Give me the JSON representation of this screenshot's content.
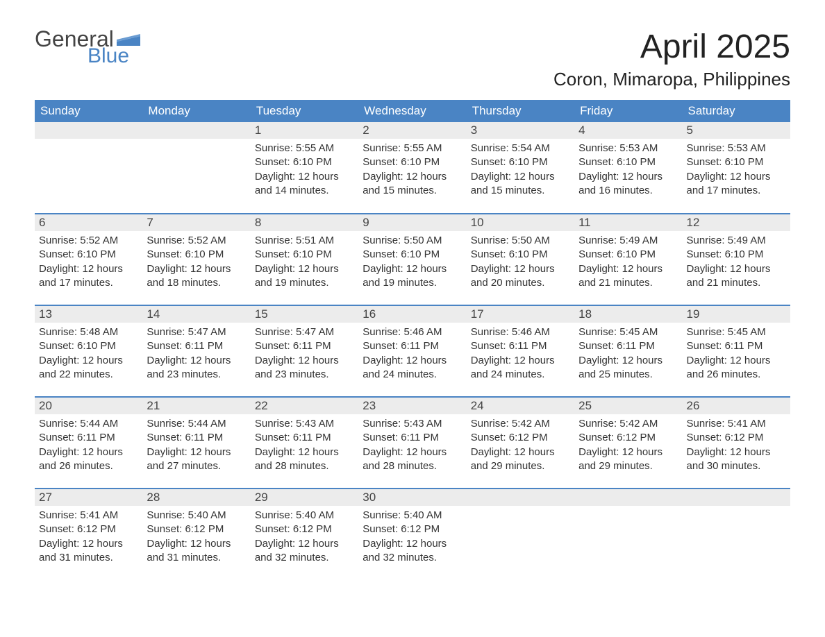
{
  "brand": {
    "text1": "General",
    "text2": "Blue",
    "flag_color": "#4a84c4",
    "text1_color": "#444444",
    "text2_color": "#4a84c4"
  },
  "title": {
    "month": "April 2025",
    "location": "Coron, Mimaropa, Philippines"
  },
  "style": {
    "header_bg": "#4a84c4",
    "header_fg": "#ffffff",
    "daynum_bg": "#ececec",
    "row_separator": "#4a84c4",
    "page_bg": "#ffffff",
    "text_color": "#333333",
    "th_fontsize": 17,
    "title_fontsize": 48,
    "location_fontsize": 26,
    "daynum_fontsize": 17,
    "data_fontsize": 15
  },
  "weekdays": [
    "Sunday",
    "Monday",
    "Tuesday",
    "Wednesday",
    "Thursday",
    "Friday",
    "Saturday"
  ],
  "weeks": [
    [
      null,
      null,
      {
        "d": "1",
        "sr": "Sunrise: 5:55 AM",
        "ss": "Sunset: 6:10 PM",
        "dl1": "Daylight: 12 hours",
        "dl2": "and 14 minutes."
      },
      {
        "d": "2",
        "sr": "Sunrise: 5:55 AM",
        "ss": "Sunset: 6:10 PM",
        "dl1": "Daylight: 12 hours",
        "dl2": "and 15 minutes."
      },
      {
        "d": "3",
        "sr": "Sunrise: 5:54 AM",
        "ss": "Sunset: 6:10 PM",
        "dl1": "Daylight: 12 hours",
        "dl2": "and 15 minutes."
      },
      {
        "d": "4",
        "sr": "Sunrise: 5:53 AM",
        "ss": "Sunset: 6:10 PM",
        "dl1": "Daylight: 12 hours",
        "dl2": "and 16 minutes."
      },
      {
        "d": "5",
        "sr": "Sunrise: 5:53 AM",
        "ss": "Sunset: 6:10 PM",
        "dl1": "Daylight: 12 hours",
        "dl2": "and 17 minutes."
      }
    ],
    [
      {
        "d": "6",
        "sr": "Sunrise: 5:52 AM",
        "ss": "Sunset: 6:10 PM",
        "dl1": "Daylight: 12 hours",
        "dl2": "and 17 minutes."
      },
      {
        "d": "7",
        "sr": "Sunrise: 5:52 AM",
        "ss": "Sunset: 6:10 PM",
        "dl1": "Daylight: 12 hours",
        "dl2": "and 18 minutes."
      },
      {
        "d": "8",
        "sr": "Sunrise: 5:51 AM",
        "ss": "Sunset: 6:10 PM",
        "dl1": "Daylight: 12 hours",
        "dl2": "and 19 minutes."
      },
      {
        "d": "9",
        "sr": "Sunrise: 5:50 AM",
        "ss": "Sunset: 6:10 PM",
        "dl1": "Daylight: 12 hours",
        "dl2": "and 19 minutes."
      },
      {
        "d": "10",
        "sr": "Sunrise: 5:50 AM",
        "ss": "Sunset: 6:10 PM",
        "dl1": "Daylight: 12 hours",
        "dl2": "and 20 minutes."
      },
      {
        "d": "11",
        "sr": "Sunrise: 5:49 AM",
        "ss": "Sunset: 6:10 PM",
        "dl1": "Daylight: 12 hours",
        "dl2": "and 21 minutes."
      },
      {
        "d": "12",
        "sr": "Sunrise: 5:49 AM",
        "ss": "Sunset: 6:10 PM",
        "dl1": "Daylight: 12 hours",
        "dl2": "and 21 minutes."
      }
    ],
    [
      {
        "d": "13",
        "sr": "Sunrise: 5:48 AM",
        "ss": "Sunset: 6:10 PM",
        "dl1": "Daylight: 12 hours",
        "dl2": "and 22 minutes."
      },
      {
        "d": "14",
        "sr": "Sunrise: 5:47 AM",
        "ss": "Sunset: 6:11 PM",
        "dl1": "Daylight: 12 hours",
        "dl2": "and 23 minutes."
      },
      {
        "d": "15",
        "sr": "Sunrise: 5:47 AM",
        "ss": "Sunset: 6:11 PM",
        "dl1": "Daylight: 12 hours",
        "dl2": "and 23 minutes."
      },
      {
        "d": "16",
        "sr": "Sunrise: 5:46 AM",
        "ss": "Sunset: 6:11 PM",
        "dl1": "Daylight: 12 hours",
        "dl2": "and 24 minutes."
      },
      {
        "d": "17",
        "sr": "Sunrise: 5:46 AM",
        "ss": "Sunset: 6:11 PM",
        "dl1": "Daylight: 12 hours",
        "dl2": "and 24 minutes."
      },
      {
        "d": "18",
        "sr": "Sunrise: 5:45 AM",
        "ss": "Sunset: 6:11 PM",
        "dl1": "Daylight: 12 hours",
        "dl2": "and 25 minutes."
      },
      {
        "d": "19",
        "sr": "Sunrise: 5:45 AM",
        "ss": "Sunset: 6:11 PM",
        "dl1": "Daylight: 12 hours",
        "dl2": "and 26 minutes."
      }
    ],
    [
      {
        "d": "20",
        "sr": "Sunrise: 5:44 AM",
        "ss": "Sunset: 6:11 PM",
        "dl1": "Daylight: 12 hours",
        "dl2": "and 26 minutes."
      },
      {
        "d": "21",
        "sr": "Sunrise: 5:44 AM",
        "ss": "Sunset: 6:11 PM",
        "dl1": "Daylight: 12 hours",
        "dl2": "and 27 minutes."
      },
      {
        "d": "22",
        "sr": "Sunrise: 5:43 AM",
        "ss": "Sunset: 6:11 PM",
        "dl1": "Daylight: 12 hours",
        "dl2": "and 28 minutes."
      },
      {
        "d": "23",
        "sr": "Sunrise: 5:43 AM",
        "ss": "Sunset: 6:11 PM",
        "dl1": "Daylight: 12 hours",
        "dl2": "and 28 minutes."
      },
      {
        "d": "24",
        "sr": "Sunrise: 5:42 AM",
        "ss": "Sunset: 6:12 PM",
        "dl1": "Daylight: 12 hours",
        "dl2": "and 29 minutes."
      },
      {
        "d": "25",
        "sr": "Sunrise: 5:42 AM",
        "ss": "Sunset: 6:12 PM",
        "dl1": "Daylight: 12 hours",
        "dl2": "and 29 minutes."
      },
      {
        "d": "26",
        "sr": "Sunrise: 5:41 AM",
        "ss": "Sunset: 6:12 PM",
        "dl1": "Daylight: 12 hours",
        "dl2": "and 30 minutes."
      }
    ],
    [
      {
        "d": "27",
        "sr": "Sunrise: 5:41 AM",
        "ss": "Sunset: 6:12 PM",
        "dl1": "Daylight: 12 hours",
        "dl2": "and 31 minutes."
      },
      {
        "d": "28",
        "sr": "Sunrise: 5:40 AM",
        "ss": "Sunset: 6:12 PM",
        "dl1": "Daylight: 12 hours",
        "dl2": "and 31 minutes."
      },
      {
        "d": "29",
        "sr": "Sunrise: 5:40 AM",
        "ss": "Sunset: 6:12 PM",
        "dl1": "Daylight: 12 hours",
        "dl2": "and 32 minutes."
      },
      {
        "d": "30",
        "sr": "Sunrise: 5:40 AM",
        "ss": "Sunset: 6:12 PM",
        "dl1": "Daylight: 12 hours",
        "dl2": "and 32 minutes."
      },
      null,
      null,
      null
    ]
  ]
}
